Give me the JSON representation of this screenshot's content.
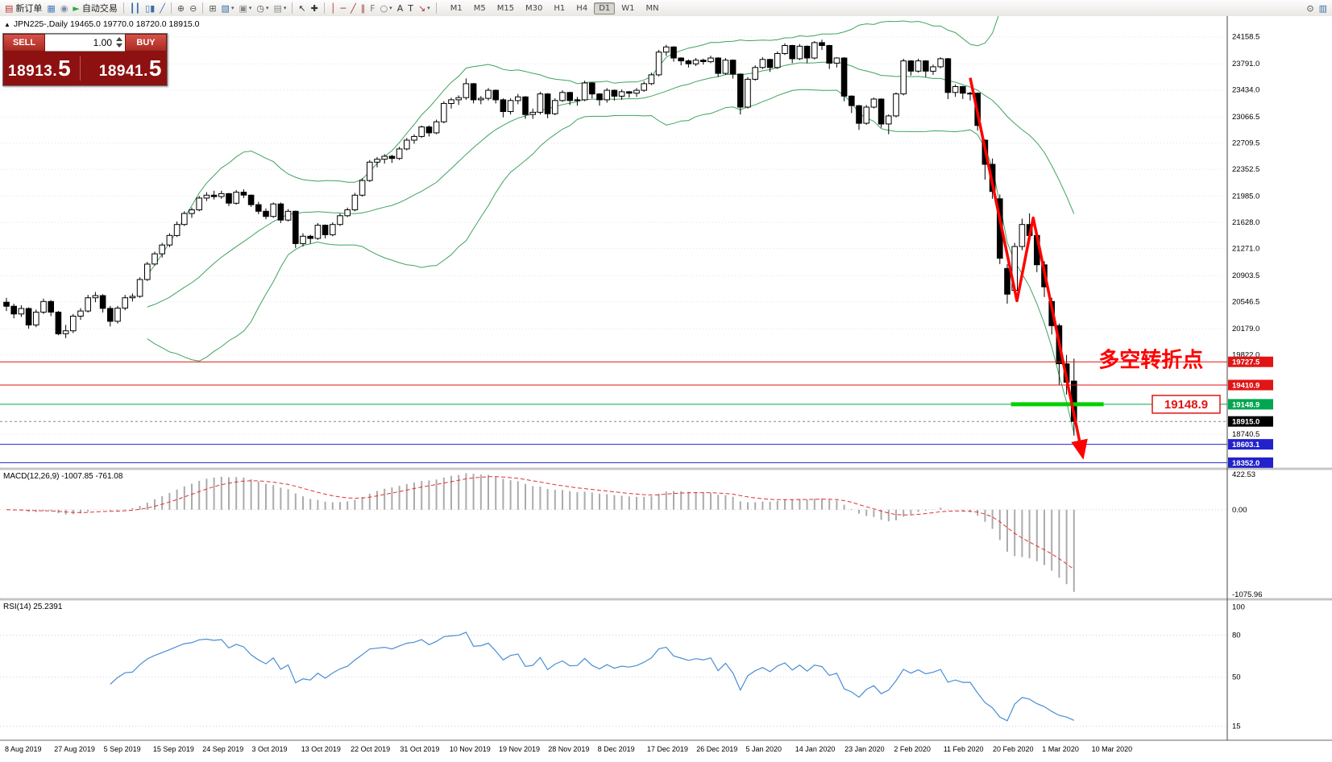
{
  "toolbar": {
    "items": [
      {
        "n": "new-order",
        "g": "▤",
        "color": "#b8342c",
        "label": "新订单"
      },
      {
        "n": "market-watch",
        "g": "▦",
        "color": "#4a7ebb"
      },
      {
        "n": "navigator",
        "g": "◉",
        "color": "#7a8aa0"
      },
      {
        "n": "autotrading",
        "g": "►",
        "color": "#2fa83c",
        "label": "自动交易"
      },
      {
        "sep": true
      },
      {
        "n": "chart-bars",
        "g": "┃┃",
        "color": "#3a6ea5"
      },
      {
        "n": "chart-candles",
        "g": "▯▮",
        "color": "#3a6ea5"
      },
      {
        "n": "chart-line",
        "g": "╱",
        "color": "#3a6ea5"
      },
      {
        "sep": true
      },
      {
        "n": "zoom-in",
        "g": "⊕",
        "color": "#555555"
      },
      {
        "n": "zoom-out",
        "g": "⊖",
        "color": "#555555"
      },
      {
        "sep": true
      },
      {
        "n": "tile-windows",
        "g": "⊞",
        "color": "#555555"
      },
      {
        "n": "new-chart",
        "g": "▧",
        "color": "#3a6ea5",
        "dd": true
      },
      {
        "n": "profiles",
        "g": "▣",
        "color": "#888888",
        "dd": true
      },
      {
        "n": "period",
        "g": "◷",
        "color": "#555555",
        "dd": true
      },
      {
        "n": "template",
        "g": "▤",
        "color": "#888888",
        "dd": true
      },
      {
        "sep": true
      },
      {
        "n": "cursor",
        "g": "↖",
        "color": "#333333"
      },
      {
        "n": "crosshair",
        "g": "✚",
        "color": "#333333"
      },
      {
        "sep": true
      },
      {
        "n": "vertical-line",
        "g": "│",
        "color": "#aa3333"
      },
      {
        "n": "horizontal-line",
        "g": "─",
        "color": "#aa3333"
      },
      {
        "n": "trendline",
        "g": "╱",
        "color": "#aa3333"
      },
      {
        "n": "channel",
        "g": "∥",
        "color": "#aa3333"
      },
      {
        "n": "fibonacci",
        "g": "F",
        "color": "#777777"
      },
      {
        "n": "shapes",
        "g": "○",
        "color": "#777777",
        "dd": true
      },
      {
        "n": "text",
        "g": "A",
        "color": "#333333"
      },
      {
        "n": "text-label",
        "g": "T",
        "color": "#333333"
      },
      {
        "n": "arrows",
        "g": "↘",
        "color": "#aa3333",
        "dd": true
      },
      {
        "sep": true
      }
    ],
    "timeframes": [
      "M1",
      "M5",
      "M15",
      "M30",
      "H1",
      "H4",
      "D1",
      "W1",
      "MN"
    ],
    "active_timeframe": "D1",
    "right_icons": [
      {
        "n": "search",
        "g": "⊙",
        "color": "#444444"
      },
      {
        "n": "chart-mini",
        "g": "▥",
        "color": "#3a6ea5"
      }
    ]
  },
  "chart": {
    "header_marker": "▲",
    "header": "JPN225-,Daily  19465.0 19770.0 18720.0 18915.0"
  },
  "trade_panel": {
    "sell_label": "SELL",
    "buy_label": "BUY",
    "volume": "1.00",
    "sell_price": "18913.",
    "sell_price_big": "5",
    "buy_price": "18941.",
    "buy_price_big": "5"
  },
  "chart_data": {
    "type": "candlestick",
    "symbol": "JPN225-",
    "period": "Daily",
    "ohlc_display": {
      "open": 19465.0,
      "high": 19770.0,
      "low": 18720.0,
      "close": 18915.0
    },
    "y_range": [
      18280,
      24430
    ],
    "y_ticks": [
      24158.5,
      23791.0,
      23434.0,
      23066.5,
      22709.5,
      22352.5,
      21985.0,
      21628.0,
      21271.0,
      20903.5,
      20546.5,
      20179.0,
      19822.0,
      18740.5
    ],
    "price_labels": [
      {
        "value": "19727.5",
        "price": 19727.5,
        "bg": "#e01515",
        "line": "#e01515",
        "dash": false
      },
      {
        "value": "19410.9",
        "price": 19410.9,
        "bg": "#e01515",
        "line": "#e01515",
        "dash": false
      },
      {
        "value": "19148.9",
        "price": 19148.9,
        "bg": "#00a651",
        "line": "#00a651",
        "dash": false
      },
      {
        "value": "18915.0",
        "price": 18915.0,
        "bg": "#000000",
        "line": "#888888",
        "dash": true
      },
      {
        "value": "18603.1",
        "price": 18603.1,
        "bg": "#2222cc",
        "line": "#2222cc",
        "dash": false
      },
      {
        "value": "18352.0",
        "price": 18352.0,
        "bg": "#2222cc",
        "line": "#2222cc",
        "dash": false
      }
    ],
    "x_labels": [
      "8 Aug 2019",
      "27 Aug 2019",
      "5 Sep 2019",
      "15 Sep 2019",
      "24 Sep 2019",
      "3 Oct 2019",
      "13 Oct 2019",
      "22 Oct 2019",
      "31 Oct 2019",
      "10 Nov 2019",
      "19 Nov 2019",
      "28 Nov 2019",
      "8 Dec 2019",
      "17 Dec 2019",
      "26 Dec 2019",
      "5 Jan 2020",
      "14 Jan 2020",
      "23 Jan 2020",
      "2 Feb 2020",
      "11 Feb 2020",
      "20 Feb 2020",
      "1 Mar 2020",
      "10 Mar 2020"
    ],
    "candles": [
      [
        20540,
        20600,
        20420,
        20485
      ],
      [
        20485,
        20520,
        20320,
        20380
      ],
      [
        20380,
        20500,
        20340,
        20455
      ],
      [
        20455,
        20470,
        20180,
        20230
      ],
      [
        20230,
        20440,
        20200,
        20405
      ],
      [
        20405,
        20590,
        20380,
        20550
      ],
      [
        20550,
        20570,
        20350,
        20405
      ],
      [
        20405,
        20420,
        20090,
        20110
      ],
      [
        20110,
        20230,
        20050,
        20150
      ],
      [
        20150,
        20380,
        20120,
        20350
      ],
      [
        20350,
        20460,
        20300,
        20420
      ],
      [
        20420,
        20640,
        20400,
        20600
      ],
      [
        20600,
        20680,
        20540,
        20630
      ],
      [
        20630,
        20650,
        20400,
        20456
      ],
      [
        20456,
        20490,
        20210,
        20280
      ],
      [
        20280,
        20490,
        20250,
        20460
      ],
      [
        20460,
        20640,
        20430,
        20600
      ],
      [
        20600,
        20660,
        20550,
        20620
      ],
      [
        20620,
        20880,
        20600,
        20850
      ],
      [
        20850,
        21090,
        20830,
        21060
      ],
      [
        21060,
        21230,
        21040,
        21200
      ],
      [
        21200,
        21350,
        21150,
        21320
      ],
      [
        21320,
        21480,
        21290,
        21450
      ],
      [
        21450,
        21640,
        21430,
        21600
      ],
      [
        21600,
        21780,
        21580,
        21750
      ],
      [
        21750,
        21830,
        21690,
        21800
      ],
      [
        21800,
        21990,
        21780,
        21960
      ],
      [
        21960,
        22040,
        21920,
        22000
      ],
      [
        22000,
        22060,
        21940,
        21980
      ],
      [
        21980,
        22060,
        21950,
        22020
      ],
      [
        22020,
        22030,
        21850,
        21890
      ],
      [
        21890,
        22070,
        21870,
        22040
      ],
      [
        22040,
        22080,
        21960,
        22000
      ],
      [
        22000,
        22010,
        21840,
        21870
      ],
      [
        21870,
        21910,
        21740,
        21780
      ],
      [
        21780,
        21820,
        21670,
        21710
      ],
      [
        21710,
        21900,
        21690,
        21880
      ],
      [
        21880,
        21900,
        21620,
        21660
      ],
      [
        21660,
        21810,
        21640,
        21780
      ],
      [
        21780,
        21790,
        21280,
        21340
      ],
      [
        21340,
        21480,
        21300,
        21440
      ],
      [
        21440,
        21460,
        21340,
        21410
      ],
      [
        21410,
        21620,
        21390,
        21590
      ],
      [
        21590,
        21600,
        21410,
        21460
      ],
      [
        21460,
        21630,
        21440,
        21600
      ],
      [
        21600,
        21750,
        21580,
        21720
      ],
      [
        21720,
        21830,
        21700,
        21800
      ],
      [
        21800,
        22030,
        21780,
        22000
      ],
      [
        22000,
        22230,
        21980,
        22200
      ],
      [
        22200,
        22480,
        22180,
        22450
      ],
      [
        22450,
        22520,
        22380,
        22490
      ],
      [
        22490,
        22560,
        22430,
        22530
      ],
      [
        22530,
        22550,
        22440,
        22500
      ],
      [
        22500,
        22660,
        22480,
        22630
      ],
      [
        22630,
        22780,
        22610,
        22750
      ],
      [
        22750,
        22830,
        22700,
        22800
      ],
      [
        22800,
        22950,
        22780,
        22930
      ],
      [
        22930,
        22950,
        22800,
        22850
      ],
      [
        22850,
        23030,
        22830,
        23000
      ],
      [
        23000,
        23280,
        22980,
        23250
      ],
      [
        23250,
        23330,
        23180,
        23300
      ],
      [
        23300,
        23360,
        23230,
        23330
      ],
      [
        23330,
        23590,
        23300,
        23520
      ],
      [
        23520,
        23530,
        23250,
        23300
      ],
      [
        23300,
        23350,
        23240,
        23320
      ],
      [
        23320,
        23460,
        23290,
        23430
      ],
      [
        23430,
        23440,
        23250,
        23300
      ],
      [
        23300,
        23320,
        23060,
        23140
      ],
      [
        23140,
        23320,
        23100,
        23290
      ],
      [
        23290,
        23380,
        23240,
        23340
      ],
      [
        23340,
        23350,
        23040,
        23100
      ],
      [
        23100,
        23180,
        23040,
        23130
      ],
      [
        23130,
        23410,
        23100,
        23380
      ],
      [
        23380,
        23390,
        23050,
        23110
      ],
      [
        23110,
        23320,
        23090,
        23290
      ],
      [
        23290,
        23430,
        23270,
        23400
      ],
      [
        23400,
        23410,
        23230,
        23290
      ],
      [
        23290,
        23340,
        23220,
        23300
      ],
      [
        23300,
        23560,
        23280,
        23530
      ],
      [
        23530,
        23540,
        23320,
        23380
      ],
      [
        23380,
        23390,
        23220,
        23300
      ],
      [
        23300,
        23460,
        23260,
        23430
      ],
      [
        23430,
        23440,
        23290,
        23350
      ],
      [
        23350,
        23440,
        23300,
        23410
      ],
      [
        23410,
        23420,
        23330,
        23390
      ],
      [
        23390,
        23460,
        23340,
        23430
      ],
      [
        23430,
        23550,
        23410,
        23520
      ],
      [
        23520,
        23670,
        23500,
        23640
      ],
      [
        23640,
        23980,
        23620,
        23950
      ],
      [
        23950,
        24050,
        23900,
        24020
      ],
      [
        24020,
        24030,
        23820,
        23870
      ],
      [
        23870,
        23880,
        23770,
        23830
      ],
      [
        23830,
        23850,
        23740,
        23790
      ],
      [
        23790,
        23870,
        23760,
        23840
      ],
      [
        23840,
        23860,
        23780,
        23820
      ],
      [
        23820,
        23900,
        23800,
        23870
      ],
      [
        23870,
        23880,
        23610,
        23660
      ],
      [
        23660,
        23870,
        23640,
        23840
      ],
      [
        23840,
        23850,
        23590,
        23650
      ],
      [
        23650,
        23660,
        23100,
        23200
      ],
      [
        23200,
        23610,
        23180,
        23580
      ],
      [
        23580,
        23770,
        23560,
        23740
      ],
      [
        23740,
        23880,
        23720,
        23850
      ],
      [
        23850,
        23860,
        23680,
        23740
      ],
      [
        23740,
        23960,
        23720,
        23930
      ],
      [
        23930,
        24070,
        23910,
        24040
      ],
      [
        24040,
        24050,
        23800,
        23860
      ],
      [
        23860,
        24060,
        23840,
        24030
      ],
      [
        24030,
        24040,
        23800,
        23870
      ],
      [
        23870,
        24100,
        23850,
        24080
      ],
      [
        24080,
        24120,
        23980,
        24040
      ],
      [
        24040,
        24050,
        23720,
        23800
      ],
      [
        23800,
        23880,
        23740,
        23870
      ],
      [
        23870,
        23880,
        23280,
        23350
      ],
      [
        23350,
        23360,
        23120,
        23220
      ],
      [
        23220,
        23230,
        22890,
        22980
      ],
      [
        22980,
        23230,
        22960,
        23200
      ],
      [
        23200,
        23330,
        23180,
        23310
      ],
      [
        23310,
        23320,
        22920,
        22970
      ],
      [
        22970,
        23100,
        22830,
        23080
      ],
      [
        23080,
        23400,
        23060,
        23380
      ],
      [
        23380,
        23860,
        23360,
        23830
      ],
      [
        23830,
        23840,
        23630,
        23690
      ],
      [
        23690,
        23860,
        23670,
        23830
      ],
      [
        23830,
        23840,
        23610,
        23690
      ],
      [
        23690,
        23780,
        23640,
        23750
      ],
      [
        23750,
        23880,
        23730,
        23860
      ],
      [
        23860,
        23870,
        23310,
        23400
      ],
      [
        23400,
        23510,
        23340,
        23480
      ],
      [
        23480,
        23490,
        23310,
        23390
      ],
      [
        23390,
        23410,
        23290,
        23390
      ],
      [
        23390,
        23400,
        22880,
        22950
      ],
      [
        22750,
        22760,
        22210,
        22420
      ],
      [
        22420,
        22500,
        21950,
        22050
      ],
      [
        21950,
        22010,
        21060,
        21140
      ],
      [
        21000,
        21060,
        20520,
        20650
      ],
      [
        20700,
        21350,
        20650,
        21300
      ],
      [
        21300,
        21680,
        21250,
        21600
      ],
      [
        21600,
        21750,
        21350,
        21450
      ],
      [
        21450,
        21460,
        20950,
        21050
      ],
      [
        21050,
        21100,
        20610,
        20750
      ],
      [
        20550,
        20600,
        20100,
        20220
      ],
      [
        20220,
        20250,
        19410,
        19700
      ],
      [
        19700,
        19822,
        19280,
        19450
      ],
      [
        19465,
        19770,
        18720,
        18915
      ]
    ],
    "indicators": {
      "bollinger": {
        "period": 20,
        "deviation": 2,
        "color": "#3fa35f"
      },
      "macd": {
        "label": "MACD(12,26,9)",
        "value_text": "-1007.85 -761.08",
        "fast": 12,
        "slow": 26,
        "signal": 9,
        "axis_labels": [
          "422.53",
          "0.00",
          "-1075.96"
        ],
        "hist_color": "#ababab",
        "signal_color": "#e03131"
      },
      "rsi": {
        "label": "RSI(14)",
        "value_text": "25.2391",
        "period": 14,
        "axis_labels": [
          "100",
          "80",
          "50",
          "15"
        ],
        "levels": [
          80,
          50,
          15
        ],
        "color": "#4a8ed5"
      }
    },
    "drawings": {
      "zigzag_arrow": {
        "color": "#ff0000",
        "width": 3.5,
        "points": [
          [
            130,
            23600
          ],
          [
            136.3,
            20560
          ],
          [
            138.5,
            21690
          ],
          [
            145.2,
            18430
          ]
        ]
      },
      "support_segment": {
        "color": "#00d000",
        "width": 5,
        "price": 19148.9,
        "from_index": 135.5,
        "to_index": 148
      },
      "annotation": {
        "text": "多空转折点",
        "color": "#ff0000",
        "index": 147.3,
        "price": 19660
      },
      "price_tag": {
        "text": "19148.9",
        "color": "#e01515",
        "price": 19148.9
      }
    }
  }
}
